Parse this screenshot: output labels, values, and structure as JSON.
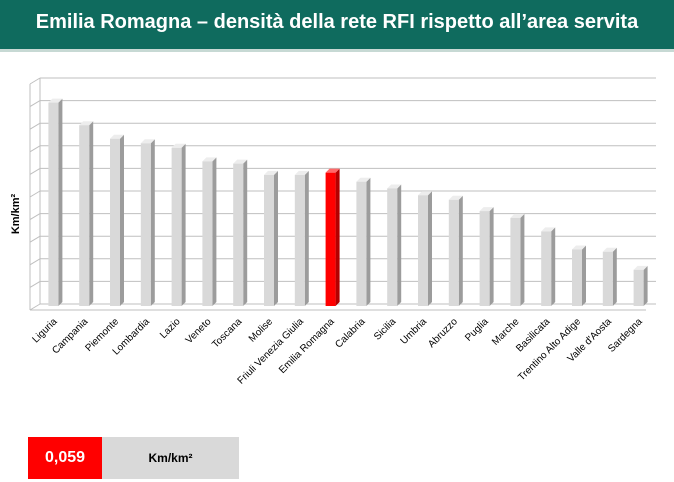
{
  "header": {
    "title": "Emilia Romagna – densità della rete RFI rispetto all’area servita"
  },
  "chart_data": {
    "type": "bar",
    "title": "Emilia Romagna – densità della rete RFI rispetto all’area servita",
    "ylabel": "Km/km²",
    "xlabel": "",
    "categories": [
      "Liguria",
      "Campania",
      "Piemonte",
      "Lombardia",
      "Lazio",
      "Veneto",
      "Toscana",
      "Molise",
      "Friuli Venezia Giulia",
      "Emilia Romagna",
      "Calabria",
      "Sicilia",
      "Umbria",
      "Abruzzo",
      "Puglia",
      "Marche",
      "Basilicata",
      "Trentino Alto Adige",
      "Valle d'Aosta",
      "Sardegna"
    ],
    "values": [
      0.09,
      0.08,
      0.074,
      0.072,
      0.07,
      0.064,
      0.063,
      0.058,
      0.058,
      0.059,
      0.055,
      0.052,
      0.049,
      0.047,
      0.042,
      0.039,
      0.033,
      0.025,
      0.024,
      0.016
    ],
    "highlight": "Emilia Romagna",
    "ylim": [
      0,
      0.1
    ],
    "tick_labels_shown": false,
    "grid": true,
    "colors": {
      "bar": "#d9d9d9",
      "highlight": "#ff0000"
    }
  },
  "value_box": {
    "value": "0,059",
    "unit": "Km/km²"
  },
  "colors": {
    "banner": "#0f6b5e",
    "accent": "#ff0000",
    "unit_box": "#d9d9d9"
  }
}
